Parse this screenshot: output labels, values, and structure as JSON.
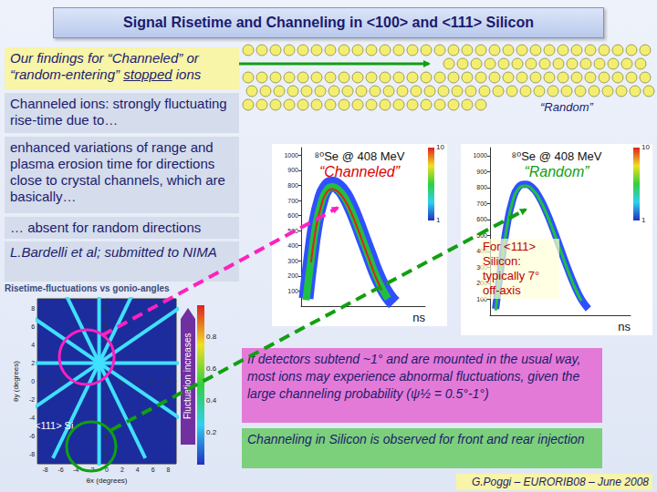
{
  "title": "Signal Risetime and Channeling in <100> and <111> Silicon",
  "boxes": {
    "findings": {
      "text_before": "Our findings for “Channeled” or “random-entering” ",
      "underlined": "stopped",
      "text_after": " ions"
    },
    "channeled": "Channeled ions: strongly fluctuating rise-time due to…",
    "variations": "enhanced variations of range and plasma erosion time for directions close to crystal channels, which are basically…",
    "random": "… absent for random directions",
    "reference": "L.Bardelli et al; submitted to NIMA",
    "detectors": "If detectors subtend ~1° and are mounted in the usual way, most ions may experience abnormal fluctuations, given the large channeling probability (ψ½ = 0.5°-1°)",
    "rear": "Channeling in Silicon is observed for front and rear injection",
    "footer": "G.Poggi – EURORIB08 – June 2008"
  },
  "lattice": {
    "label": "“Random”"
  },
  "chart_data": [
    {
      "type": "line",
      "title": "Risetime-fluctuations vs gonio-angles",
      "xlabel": "θx (degrees)",
      "ylabel": "θy (degrees)",
      "xlim": [
        -9,
        9
      ],
      "ylim": [
        -9,
        9
      ],
      "xticks": [
        -8,
        -6,
        -4,
        -2,
        0,
        2,
        4,
        6,
        8
      ],
      "yticks": [
        -8,
        -6,
        -4,
        -2,
        0,
        2,
        4,
        6,
        8
      ],
      "color": "#40e0ff",
      "lines": [
        [
          [
            -13,
            2
          ],
          [
            11,
            2
          ]
        ],
        [
          [
            -1,
            -10
          ],
          [
            -1,
            14
          ]
        ],
        [
          [
            -7,
            -8.39
          ],
          [
            5,
            12.39
          ]
        ],
        [
          [
            5,
            -8.39
          ],
          [
            -7,
            12.39
          ]
        ],
        [
          [
            -11.39,
            -4
          ],
          [
            9.39,
            8
          ]
        ],
        [
          [
            9.39,
            -4
          ],
          [
            -11.39,
            8
          ]
        ]
      ],
      "annotations": [
        "<111> Si"
      ],
      "colorbar": {
        "label": "Fluctuation increases",
        "range": [
          0,
          1
        ],
        "ticks": [
          0.2,
          0.4,
          0.6,
          0.8
        ]
      }
    },
    {
      "type": "line",
      "title": "⁸⁰Se @ 408 MeV",
      "subtitle": "“Channeled”",
      "xlabel": "ns",
      "x": [
        4,
        8,
        12,
        16,
        20,
        25,
        30,
        35,
        40,
        45,
        50,
        55,
        60,
        65,
        70,
        75,
        80
      ],
      "xlim": [
        0,
        100
      ],
      "ylim": [
        0,
        1050
      ],
      "yticks": [
        100,
        200,
        300,
        400,
        500,
        600,
        700,
        800,
        900,
        1000
      ],
      "tick_labels": "y",
      "series": [
        {
          "color": "#3050ff",
          "values": [
            50,
            330,
            560,
            700,
            780,
            810,
            790,
            740,
            660,
            560,
            450,
            340,
            230,
            140,
            70,
            20,
            null
          ]
        },
        {
          "color": "#20c040",
          "values": [
            40,
            310,
            540,
            680,
            760,
            790,
            770,
            720,
            640,
            540,
            430,
            320,
            210,
            120,
            50,
            null,
            null
          ]
        },
        {
          "color": "#e02020",
          "values": [
            null,
            290,
            520,
            660,
            745,
            775,
            755,
            705,
            625,
            525,
            415,
            305,
            195,
            105,
            null,
            null,
            null
          ]
        }
      ],
      "colorbar": {
        "range": [
          1,
          10
        ],
        "ticks": [
          1,
          10
        ],
        "log": true
      }
    },
    {
      "type": "line",
      "title": "⁸⁰Se @ 408 MeV",
      "subtitle": "“Random”",
      "xlabel": "ns",
      "x": [
        4,
        8,
        12,
        16,
        20,
        25,
        30,
        35,
        40,
        45,
        50,
        55,
        60,
        65,
        70,
        75,
        80
      ],
      "xlim": [
        0,
        100
      ],
      "ylim": [
        0,
        1050
      ],
      "yticks": [
        100,
        200,
        300,
        400,
        500,
        600,
        700,
        800,
        900,
        1000
      ],
      "tick_labels": "y",
      "series": [
        {
          "color": "#3050ff",
          "values": [
            40,
            320,
            560,
            720,
            800,
            820,
            800,
            740,
            650,
            540,
            420,
            300,
            190,
            100,
            40,
            null,
            null
          ]
        },
        {
          "color": "#20c040",
          "values": [
            30,
            310,
            550,
            710,
            790,
            810,
            790,
            730,
            640,
            530,
            410,
            290,
            180,
            90,
            null,
            null,
            null
          ]
        }
      ],
      "annotations": [
        "For <111> Silicon: typically 7° off-axis"
      ],
      "colorbar": {
        "range": [
          1,
          10
        ],
        "ticks": [
          1,
          10
        ],
        "log": true
      }
    }
  ]
}
